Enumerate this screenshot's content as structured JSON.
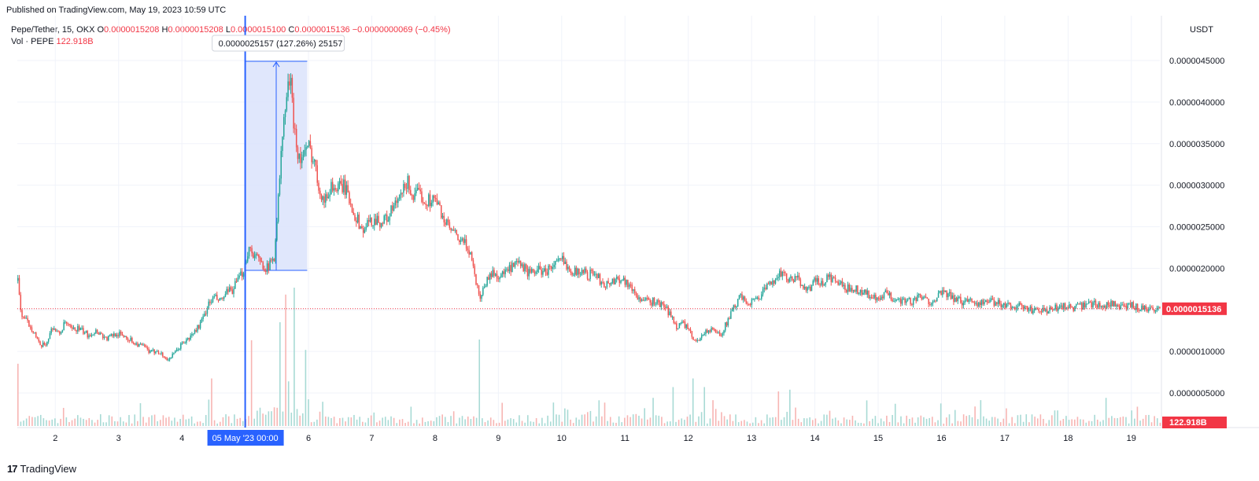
{
  "header": {
    "published": "Published on TradingView.com, May 19, 2023 10:59 UTC"
  },
  "legend": {
    "symbol": "Pepe/Tether, 15, OKX",
    "o_label": "O",
    "o_value": "0.0000015208",
    "h_label": "H",
    "h_value": "0.0000015208",
    "l_label": "L",
    "l_value": "0.0000015100",
    "c_label": "C",
    "c_value": "0.0000015136",
    "change": "−0.0000000069 (−0.45%)",
    "vol_label": "Vol · PEPE",
    "vol_value": "122.918B"
  },
  "currency": "USDT",
  "footer": {
    "logo_mark": "17",
    "logo_text": "TradingView"
  },
  "colors": {
    "up": "#26a69a",
    "down": "#ef5350",
    "price_label_bg": "#f23645",
    "marker_line": "#2962ff",
    "range_fill": "#dbe3fb"
  },
  "chart_data": {
    "type": "candlestick",
    "title": "Pepe/Tether, 15, OKX",
    "ylabel": "USDT",
    "y_ticks": [
      "0.0000045000",
      "0.0000040000",
      "0.0000035000",
      "0.0000030000",
      "0.0000025000",
      "0.0000020000",
      "0.0000015000",
      "0.0000010000",
      "0.0000005000"
    ],
    "y_tick_values": [
      4.5,
      4.0,
      3.5,
      3.0,
      2.5,
      2.0,
      1.5,
      1.0,
      0.5
    ],
    "x_ticks": [
      "2",
      "3",
      "4",
      "6",
      "7",
      "8",
      "9",
      "10",
      "11",
      "12",
      "13",
      "14",
      "15",
      "16",
      "17",
      "18",
      "19"
    ],
    "x_tick_days": [
      2,
      3,
      4,
      6,
      7,
      8,
      9,
      10,
      11,
      12,
      13,
      14,
      15,
      16,
      17,
      18,
      19
    ],
    "x_range_days": [
      1.4,
      19.45
    ],
    "ylim": [
      0,
      4.9
    ],
    "y_unit_note": "values in units of 1e-6 USDT",
    "last_price": "0.0000015136",
    "last_price_value": 1.5136,
    "volume_label": "122.918B",
    "crosshair_label": "05 May '23   00:00",
    "measure": {
      "label": "0.0000025157 (127.26%) 25157",
      "x_start_day": 5.0,
      "x_end_day": 5.98,
      "y_low": 1.975,
      "y_high": 4.49
    },
    "price_path": [
      [
        1.4,
        1.85
      ],
      [
        1.45,
        1.45
      ],
      [
        1.55,
        1.35
      ],
      [
        1.65,
        1.25
      ],
      [
        1.75,
        1.05
      ],
      [
        1.85,
        1.1
      ],
      [
        1.95,
        1.3
      ],
      [
        2.05,
        1.2
      ],
      [
        2.15,
        1.35
      ],
      [
        2.25,
        1.25
      ],
      [
        2.35,
        1.28
      ],
      [
        2.5,
        1.2
      ],
      [
        2.65,
        1.25
      ],
      [
        2.8,
        1.15
      ],
      [
        2.95,
        1.22
      ],
      [
        3.1,
        1.18
      ],
      [
        3.25,
        1.1
      ],
      [
        3.4,
        1.05
      ],
      [
        3.5,
        0.98
      ],
      [
        3.6,
        1.02
      ],
      [
        3.75,
        0.9
      ],
      [
        3.85,
        0.95
      ],
      [
        4.0,
        1.1
      ],
      [
        4.1,
        1.15
      ],
      [
        4.2,
        1.25
      ],
      [
        4.3,
        1.35
      ],
      [
        4.4,
        1.55
      ],
      [
        4.5,
        1.65
      ],
      [
        4.6,
        1.6
      ],
      [
        4.7,
        1.7
      ],
      [
        4.8,
        1.75
      ],
      [
        4.95,
        1.95
      ],
      [
        5.05,
        2.25
      ],
      [
        5.15,
        2.15
      ],
      [
        5.25,
        2.05
      ],
      [
        5.35,
        2.0
      ],
      [
        5.45,
        2.15
      ],
      [
        5.52,
        2.9
      ],
      [
        5.58,
        3.6
      ],
      [
        5.65,
        4.1
      ],
      [
        5.7,
        4.3
      ],
      [
        5.74,
        3.9
      ],
      [
        5.8,
        3.5
      ],
      [
        5.85,
        3.3
      ],
      [
        5.9,
        3.35
      ],
      [
        6.0,
        3.45
      ],
      [
        6.08,
        3.3
      ],
      [
        6.15,
        3.0
      ],
      [
        6.25,
        2.8
      ],
      [
        6.35,
        3.0
      ],
      [
        6.45,
        2.95
      ],
      [
        6.55,
        3.0
      ],
      [
        6.65,
        2.8
      ],
      [
        6.75,
        2.6
      ],
      [
        6.85,
        2.45
      ],
      [
        6.95,
        2.55
      ],
      [
        7.05,
        2.6
      ],
      [
        7.15,
        2.55
      ],
      [
        7.25,
        2.62
      ],
      [
        7.35,
        2.75
      ],
      [
        7.45,
        2.85
      ],
      [
        7.55,
        3.05
      ],
      [
        7.65,
        2.85
      ],
      [
        7.75,
        2.9
      ],
      [
        7.85,
        2.8
      ],
      [
        7.95,
        2.85
      ],
      [
        8.05,
        2.75
      ],
      [
        8.15,
        2.55
      ],
      [
        8.25,
        2.45
      ],
      [
        8.35,
        2.35
      ],
      [
        8.45,
        2.3
      ],
      [
        8.55,
        2.2
      ],
      [
        8.62,
        1.9
      ],
      [
        8.7,
        1.65
      ],
      [
        8.8,
        1.85
      ],
      [
        8.9,
        1.95
      ],
      [
        9.0,
        1.9
      ],
      [
        9.1,
        1.95
      ],
      [
        9.2,
        2.0
      ],
      [
        9.3,
        2.05
      ],
      [
        9.4,
        2.0
      ],
      [
        9.5,
        1.92
      ],
      [
        9.6,
        2.0
      ],
      [
        9.7,
        1.95
      ],
      [
        9.8,
        2.0
      ],
      [
        9.9,
        2.05
      ],
      [
        10.0,
        2.1
      ],
      [
        10.1,
        2.02
      ],
      [
        10.2,
        1.95
      ],
      [
        10.3,
        1.98
      ],
      [
        10.4,
        1.92
      ],
      [
        10.5,
        1.95
      ],
      [
        10.6,
        1.85
      ],
      [
        10.7,
        1.8
      ],
      [
        10.8,
        1.85
      ],
      [
        10.9,
        1.88
      ],
      [
        11.0,
        1.85
      ],
      [
        11.1,
        1.75
      ],
      [
        11.2,
        1.65
      ],
      [
        11.3,
        1.6
      ],
      [
        11.45,
        1.6
      ],
      [
        11.6,
        1.55
      ],
      [
        11.7,
        1.45
      ],
      [
        11.8,
        1.3
      ],
      [
        11.9,
        1.35
      ],
      [
        12.0,
        1.25
      ],
      [
        12.1,
        1.1
      ],
      [
        12.2,
        1.2
      ],
      [
        12.3,
        1.25
      ],
      [
        12.4,
        1.25
      ],
      [
        12.5,
        1.2
      ],
      [
        12.6,
        1.35
      ],
      [
        12.7,
        1.5
      ],
      [
        12.8,
        1.65
      ],
      [
        12.9,
        1.6
      ],
      [
        13.0,
        1.6
      ],
      [
        13.1,
        1.65
      ],
      [
        13.2,
        1.75
      ],
      [
        13.3,
        1.8
      ],
      [
        13.4,
        1.95
      ],
      [
        13.5,
        1.9
      ],
      [
        13.6,
        1.85
      ],
      [
        13.7,
        1.88
      ],
      [
        13.8,
        1.8
      ],
      [
        13.9,
        1.75
      ],
      [
        14.0,
        1.85
      ],
      [
        14.1,
        1.8
      ],
      [
        14.2,
        1.9
      ],
      [
        14.3,
        1.85
      ],
      [
        14.4,
        1.8
      ],
      [
        14.5,
        1.75
      ],
      [
        14.6,
        1.78
      ],
      [
        14.7,
        1.72
      ],
      [
        14.8,
        1.7
      ],
      [
        14.9,
        1.65
      ],
      [
        15.0,
        1.6
      ],
      [
        15.1,
        1.7
      ],
      [
        15.2,
        1.65
      ],
      [
        15.35,
        1.62
      ],
      [
        15.5,
        1.6
      ],
      [
        15.65,
        1.65
      ],
      [
        15.8,
        1.6
      ],
      [
        15.95,
        1.68
      ],
      [
        16.05,
        1.7
      ],
      [
        16.15,
        1.65
      ],
      [
        16.3,
        1.6
      ],
      [
        16.45,
        1.62
      ],
      [
        16.6,
        1.58
      ],
      [
        16.75,
        1.6
      ],
      [
        16.9,
        1.58
      ],
      [
        17.05,
        1.55
      ],
      [
        17.2,
        1.55
      ],
      [
        17.35,
        1.5
      ],
      [
        17.5,
        1.5
      ],
      [
        17.65,
        1.48
      ],
      [
        17.8,
        1.52
      ],
      [
        17.95,
        1.55
      ],
      [
        18.1,
        1.52
      ],
      [
        18.25,
        1.55
      ],
      [
        18.4,
        1.58
      ],
      [
        18.55,
        1.55
      ],
      [
        18.7,
        1.58
      ],
      [
        18.85,
        1.52
      ],
      [
        19.0,
        1.55
      ],
      [
        19.15,
        1.52
      ],
      [
        19.3,
        1.52
      ],
      [
        19.42,
        1.51
      ]
    ],
    "volume_spikes": [
      [
        1.4,
        0.72
      ],
      [
        4.45,
        0.55
      ],
      [
        5.08,
        0.62
      ],
      [
        5.55,
        0.75
      ],
      [
        5.62,
        0.95
      ],
      [
        5.75,
        1.0
      ],
      [
        5.95,
        0.55
      ],
      [
        8.7,
        1.0
      ],
      [
        11.75,
        0.45
      ],
      [
        12.05,
        0.55
      ],
      [
        12.25,
        0.45
      ],
      [
        13.4,
        0.4
      ],
      [
        13.6,
        0.42
      ],
      [
        17.8,
        0.18
      ],
      [
        19.0,
        0.18
      ]
    ]
  }
}
